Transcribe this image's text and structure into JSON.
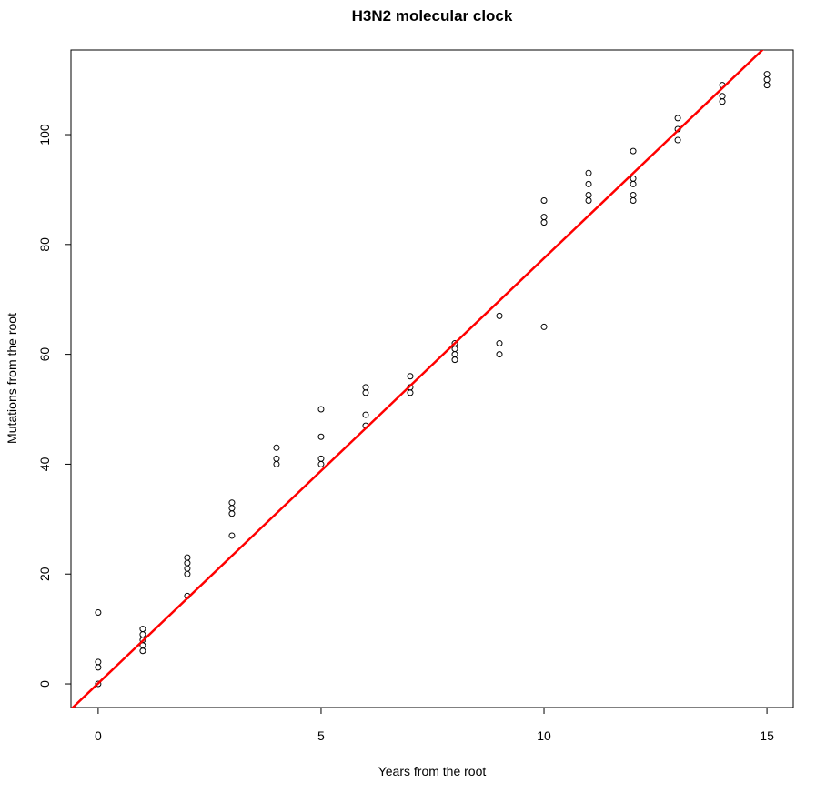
{
  "chart_data": {
    "type": "scatter",
    "title": "H3N2 molecular clock",
    "x_label": "Years from the root",
    "y_label": "Mutations from the root",
    "series": [
      {
        "color": "#000000",
        "x": [
          0,
          0,
          0,
          0,
          1,
          1,
          1,
          1,
          1,
          2,
          2,
          2,
          2,
          2,
          3,
          3,
          3,
          3,
          4,
          4,
          4,
          5,
          5,
          5,
          5,
          6,
          6,
          6,
          6,
          7,
          7,
          7,
          8,
          8,
          8,
          8,
          9,
          9,
          9,
          10,
          10,
          10,
          10,
          11,
          11,
          11,
          11,
          12,
          12,
          12,
          12,
          12,
          13,
          13,
          13,
          14,
          14,
          14,
          15,
          15,
          15
        ],
        "values": [
          13,
          4,
          3,
          0,
          10,
          9,
          8,
          7,
          6,
          23,
          22,
          21,
          20,
          16,
          33,
          32,
          31,
          27,
          43,
          41,
          40,
          50,
          45,
          41,
          40,
          54,
          53,
          49,
          47,
          56,
          54,
          53,
          62,
          61,
          60,
          59,
          67,
          62,
          60,
          88,
          85,
          84,
          65,
          93,
          91,
          89,
          88,
          97,
          92,
          91,
          89,
          88,
          103,
          101,
          99,
          109,
          107,
          106,
          111,
          110,
          109
        ]
      }
    ],
    "fit": {
      "slope": 7.74,
      "intercept": 0.1,
      "color": "#ff0000"
    },
    "xlim": [
      -0.61,
      15.59
    ],
    "ylim": [
      -4.3,
      115.4
    ],
    "xticks": [
      0,
      5,
      10,
      15
    ],
    "yticks": [
      0,
      20,
      40,
      60,
      80,
      100
    ],
    "grid": false
  }
}
